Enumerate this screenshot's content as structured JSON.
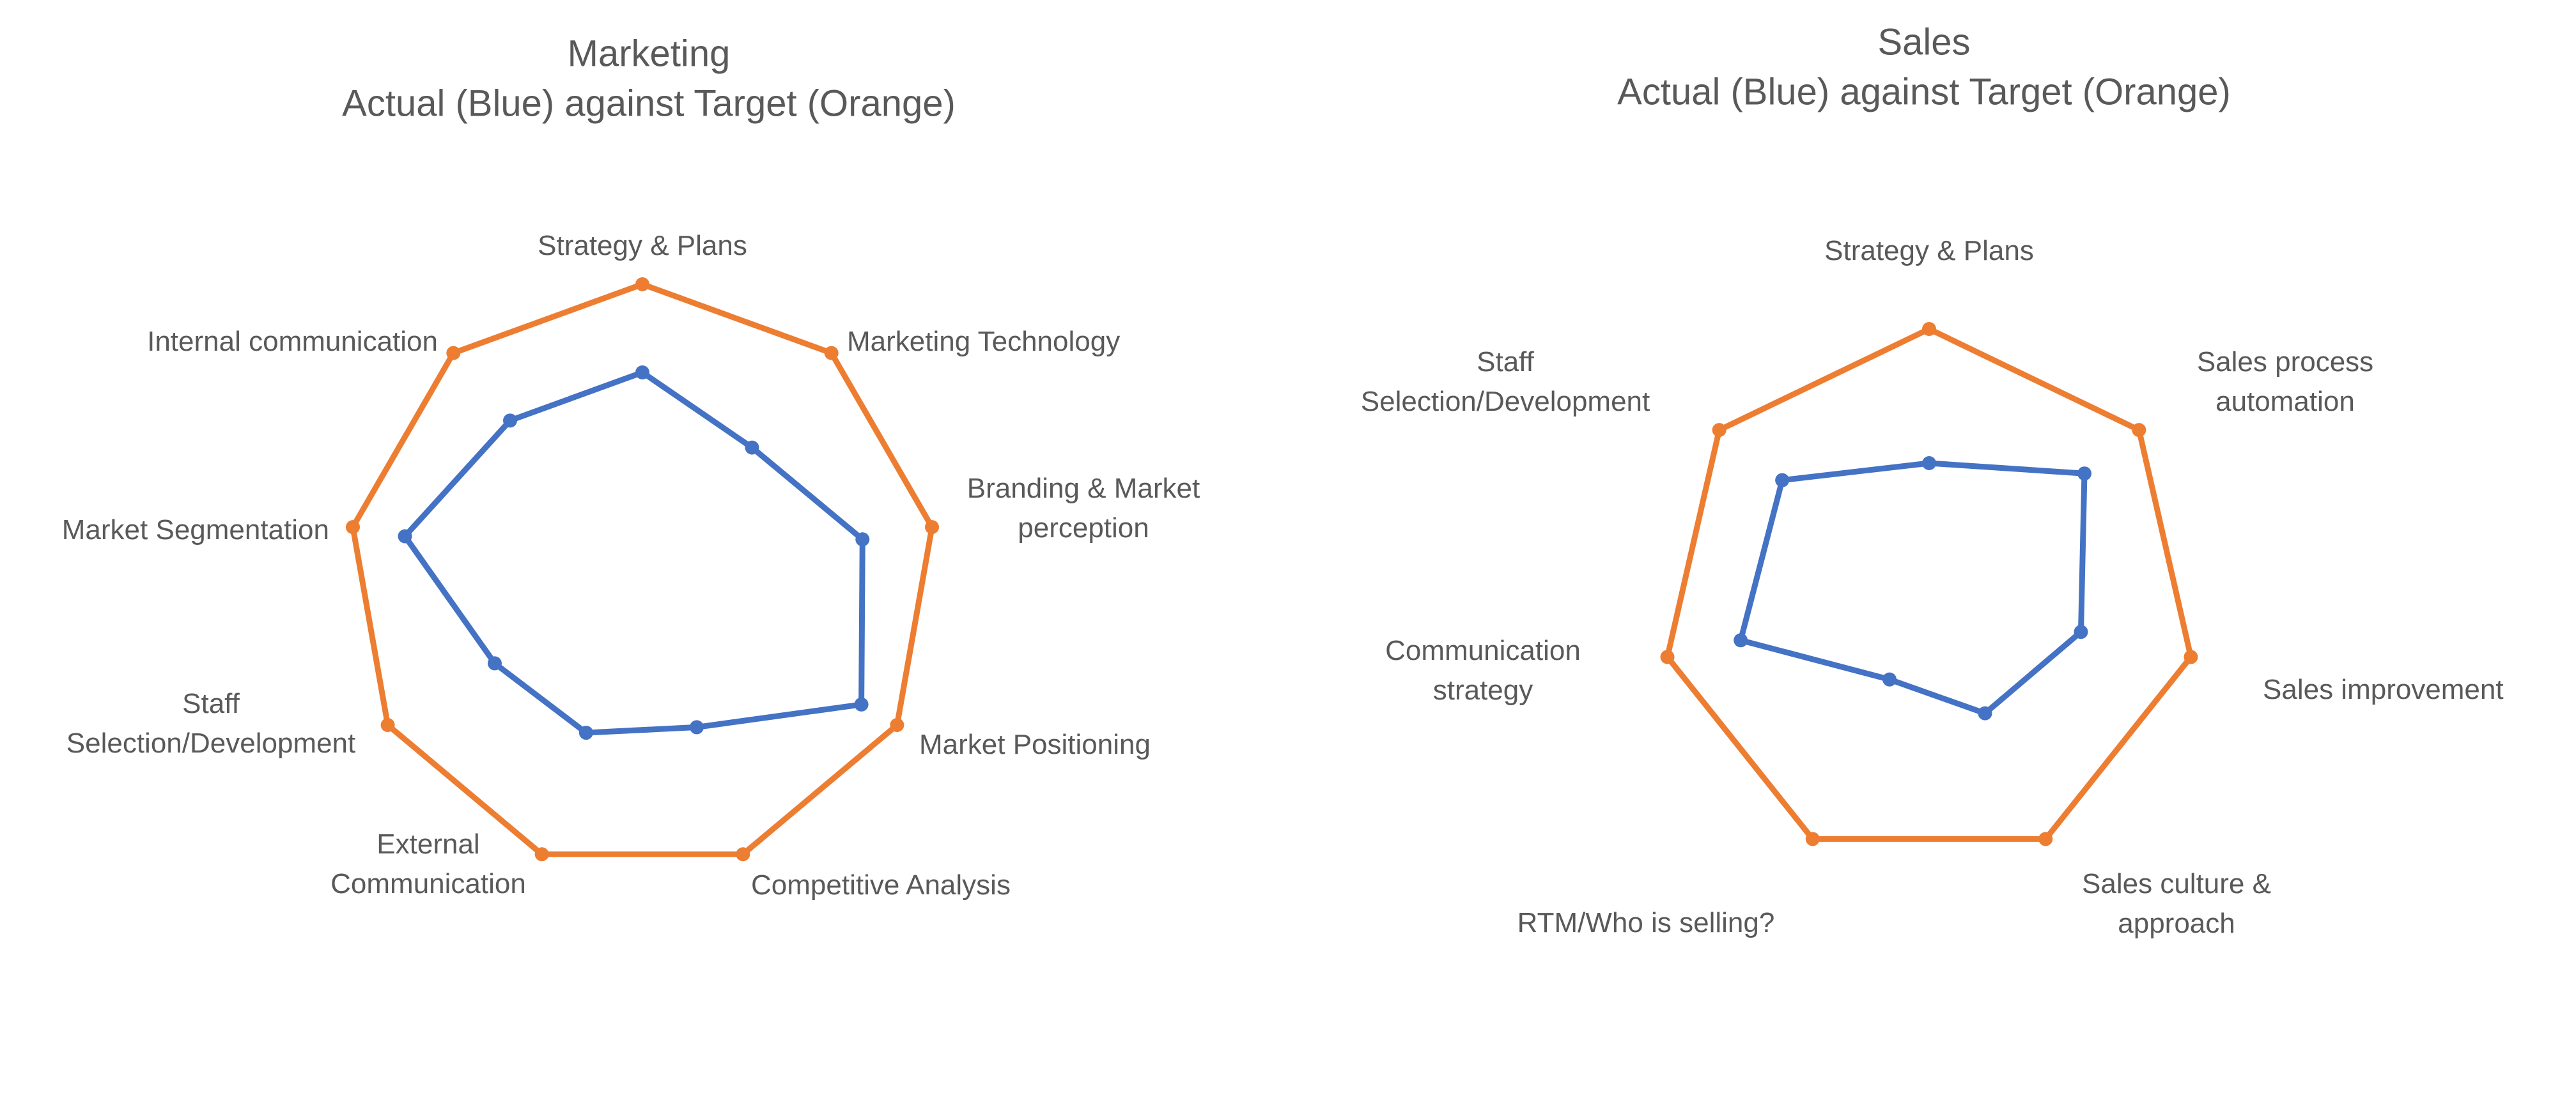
{
  "chart_data": [
    {
      "type": "radar",
      "title": [
        "Marketing",
        "Actual (Blue) against Target (Orange)"
      ],
      "categories": [
        [
          "Strategy & Plans"
        ],
        [
          "Marketing Technology"
        ],
        [
          "Branding & Market",
          "perception"
        ],
        [
          "Market Positioning"
        ],
        [
          "Competitive Analysis"
        ],
        [
          "External",
          "Communication"
        ],
        [
          "Staff",
          "Selection/Development"
        ],
        [
          "Market Segmentation"
        ],
        [
          "Internal communication"
        ]
      ],
      "series": [
        {
          "color": "#ED7D31",
          "values": [
            5,
            5,
            5,
            5,
            5,
            5,
            5,
            5,
            5
          ]
        },
        {
          "color": "#4472C4",
          "values": [
            3.5,
            2.9,
            3.8,
            4.3,
            2.7,
            2.8,
            2.9,
            4.1,
            3.5
          ]
        }
      ],
      "rmax": 5
    },
    {
      "type": "radar",
      "title": [
        "Sales",
        "Actual (Blue) against Target (Orange)"
      ],
      "categories": [
        [
          "Strategy & Plans"
        ],
        [
          "Sales process",
          "automation"
        ],
        [
          "Sales improvement"
        ],
        [
          "Sales culture &",
          "approach"
        ],
        [
          "RTM/Who is selling?"
        ],
        [
          "Communication",
          "strategy"
        ],
        [
          "Staff",
          "Selection/Development"
        ]
      ],
      "series": [
        {
          "color": "#ED7D31",
          "values": [
            5,
            5,
            5,
            5,
            5,
            5,
            5
          ]
        },
        {
          "color": "#4472C4",
          "values": [
            2.5,
            3.7,
            2.9,
            2.4,
            1.7,
            3.6,
            3.5
          ]
        }
      ],
      "rmax": 5
    }
  ]
}
